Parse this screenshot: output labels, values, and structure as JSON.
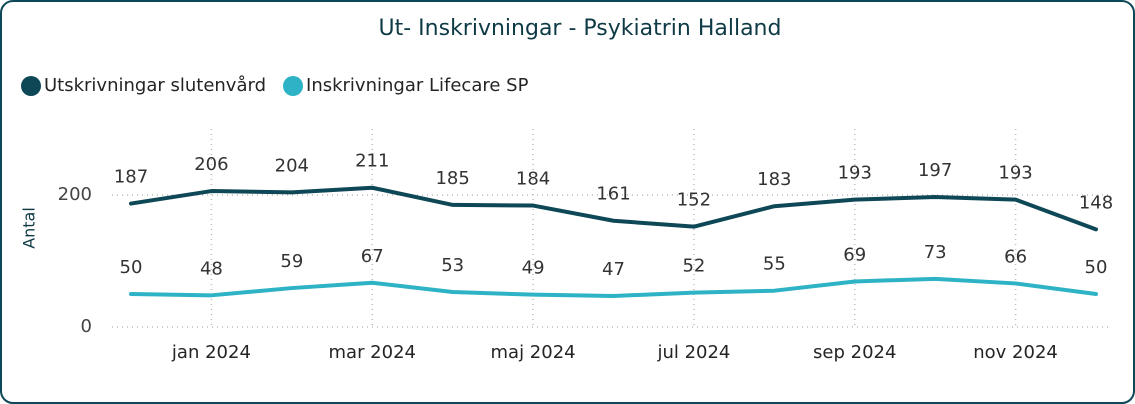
{
  "chart_data": {
    "type": "line",
    "title": "Ut- Inskrivningar - Psykiatrin Halland",
    "y_label": "Antal",
    "categories": [
      null,
      "jan 2024",
      null,
      "mar 2024",
      null,
      "maj 2024",
      null,
      "jul 2024",
      null,
      "sep 2024",
      null,
      "nov 2024",
      null
    ],
    "series": [
      {
        "name": "Utskrivningar slutenvård",
        "color": "#0e4756",
        "values": [
          187,
          206,
          204,
          211,
          185,
          184,
          161,
          152,
          183,
          193,
          197,
          193,
          148
        ]
      },
      {
        "name": "Inskrivningar Lifecare SP",
        "color": "#2db3c5",
        "values": [
          50,
          48,
          59,
          67,
          53,
          49,
          47,
          52,
          55,
          69,
          73,
          66,
          50
        ]
      }
    ],
    "ylim": [
      0,
      300
    ],
    "yticks": [
      0,
      200
    ],
    "grid": true,
    "legend": "top-left"
  }
}
